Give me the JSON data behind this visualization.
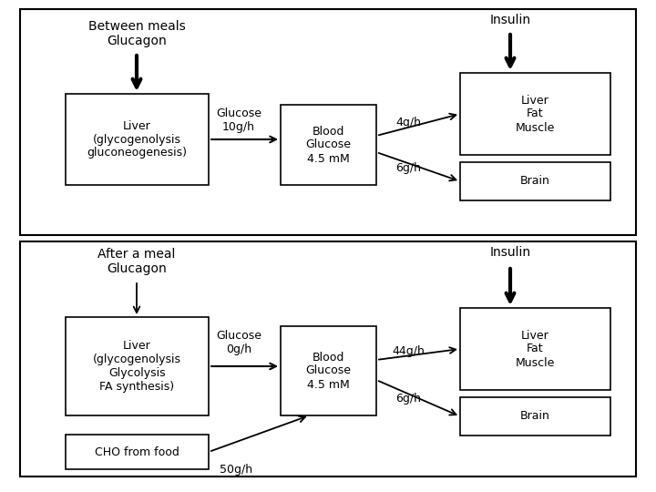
{
  "bg_color": "#ffffff",
  "panel1": {
    "title": "Between meals\nGlucagon",
    "insulin_label": "Insulin",
    "liver_box": "Liver\n(glycogenolysis\ngluconeogenesis)",
    "glucose_label": "Glucose\n10g/h",
    "blood_box": "Blood\nGlucose\n4.5 mM",
    "liver_fat_box": "Liver\nFat\nMuscle",
    "brain_box": "Brain",
    "arrow1_label": "4g/h",
    "arrow2_label": "6g/h"
  },
  "panel2": {
    "title": "After a meal\nGlucagon",
    "insulin_label": "Insulin",
    "liver_box": "Liver\n(glycogenolysis\nGlycolysis\nFA synthesis)",
    "glucose_label": "Glucose\n0g/h",
    "blood_box": "Blood\nGlucose\n4.5 mM",
    "liver_fat_box": "Liver\nFat\nMuscle",
    "brain_box": "Brain",
    "cho_box": "CHO from food",
    "arrow1_label": "44g/h",
    "arrow2_label": "6g/h",
    "cho_label": "50g/h"
  }
}
